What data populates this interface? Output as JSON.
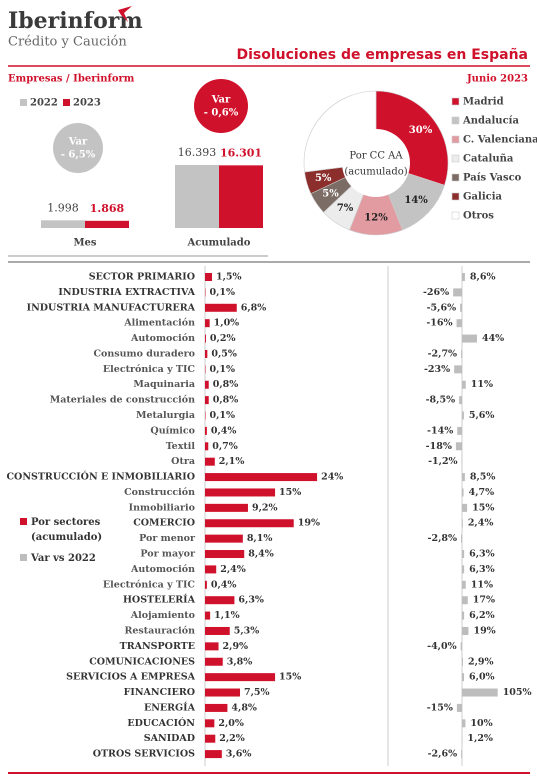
{
  "header": {
    "brand": "Iberinform",
    "tagline": "Crédito y Caución",
    "title": "Disoluciones de empresas en España",
    "source": "Empresas / Iberinform",
    "date": "Junio 2023"
  },
  "chart_data": [
    {
      "type": "bar",
      "categories": [
        "Mes",
        "Acumulado"
      ],
      "series": [
        {
          "name": "2022",
          "color": "#c3c3c3",
          "values": [
            1998,
            16393
          ],
          "value_labels": [
            "1.998",
            "16.393"
          ]
        },
        {
          "name": "2023",
          "color": "#d0112b",
          "values": [
            1868,
            16301
          ],
          "value_labels": [
            "1.868",
            "16.301"
          ]
        }
      ],
      "annotations": [
        [
          "Var",
          "- 6,5%"
        ],
        [
          "Var",
          "- 0,6%"
        ]
      ]
    },
    {
      "type": "pie",
      "title": "Por CC AA",
      "subtitle": "(acumulado)",
      "categories": [
        "Madrid",
        "Andalucía",
        "C. Valenciana",
        "Cataluña",
        "País Vasco",
        "Galicia",
        "Otros"
      ],
      "values": [
        30,
        14,
        12,
        7,
        5,
        5,
        27
      ],
      "value_labels": [
        "30%",
        "14%",
        "12%",
        "7%",
        "5%",
        "5%",
        null
      ],
      "colors": [
        "#d0112b",
        "#c3c3c3",
        "#e29ca1",
        "#ececec",
        "#7b6c66",
        "#8c2f2c",
        "#ffffff"
      ]
    },
    {
      "type": "bar",
      "orientation": "horizontal",
      "categories": [
        "SECTOR PRIMARIO",
        "INDUSTRIA EXTRACTIVA",
        "INDUSTRIA MANUFACTURERA",
        "Alimentación",
        "Automoción",
        "Consumo duradero",
        "Electrónica y TIC",
        "Maquinaria",
        "Materiales de construcción",
        "Metalurgia",
        "Químico",
        "Textil",
        "Otra",
        "CONSTRUCCIÓN E INMOBILIARIO",
        "Construcción",
        "Inmobiliario",
        "COMERCIO",
        "Por menor",
        "Por mayor",
        "Automoción",
        "Electrónica y TIC",
        "HOSTELERÍA",
        "Alojamiento",
        "Restauración",
        "TRANSPORTE",
        "COMUNICACIONES",
        "SERVICIOS A EMPRESA",
        "FINANCIERO",
        "ENERGÍA",
        "EDUCACIÓN",
        "SANIDAD",
        "OTROS SERVICIOS"
      ],
      "series": [
        {
          "name": "Por sectores (acumulado)",
          "color": "#d0112b",
          "values": [
            1.5,
            0.1,
            6.8,
            1.0,
            0.2,
            0.5,
            0.1,
            0.8,
            0.8,
            0.1,
            0.4,
            0.7,
            2.1,
            24,
            15,
            9.2,
            19,
            8.1,
            8.4,
            2.4,
            0.4,
            6.3,
            1.1,
            5.3,
            2.9,
            3.8,
            15,
            7.5,
            4.8,
            2.0,
            2.2,
            3.6
          ],
          "value_labels": [
            "1,5%",
            "0,1%",
            "6,8%",
            "1,0%",
            "0,2%",
            "0,5%",
            "0,1%",
            "0,8%",
            "0,8%",
            "0,1%",
            "0,4%",
            "0,7%",
            "2,1%",
            "24%",
            "15%",
            "9,2%",
            "19%",
            "8,1%",
            "8,4%",
            "2,4%",
            "0,4%",
            "6,3%",
            "1,1%",
            "5,3%",
            "2,9%",
            "3,8%",
            "15%",
            "7,5%",
            "4,8%",
            "2,0%",
            "2,2%",
            "3,6%"
          ]
        },
        {
          "name": "Var vs 2022",
          "color": "#bdbdbd",
          "values": [
            8.6,
            -26,
            -5.6,
            -16,
            44,
            -2.7,
            -23,
            11,
            -8.5,
            5.6,
            -14,
            -18,
            -1.2,
            8.5,
            4.7,
            15,
            2.4,
            -2.8,
            6.3,
            6.3,
            11,
            17,
            6.2,
            19,
            -4.0,
            2.9,
            6.0,
            105,
            -15,
            10,
            1.2,
            -2.6
          ],
          "value_labels": [
            "8,6%",
            "-26%",
            "-5,6%",
            "-16%",
            "44%",
            "-2,7%",
            "-23%",
            "11%",
            "-8,5%",
            "5,6%",
            "-14%",
            "-18%",
            "-1,2%",
            "8,5%",
            "4,7%",
            "15%",
            "2,4%",
            "-2,8%",
            "6,3%",
            "6,3%",
            "11%",
            "17%",
            "6,2%",
            "19%",
            "-4,0%",
            "2,9%",
            "6,0%",
            "105%",
            "-15%",
            "10%",
            "1,2%",
            "-2,6%"
          ]
        }
      ]
    }
  ]
}
